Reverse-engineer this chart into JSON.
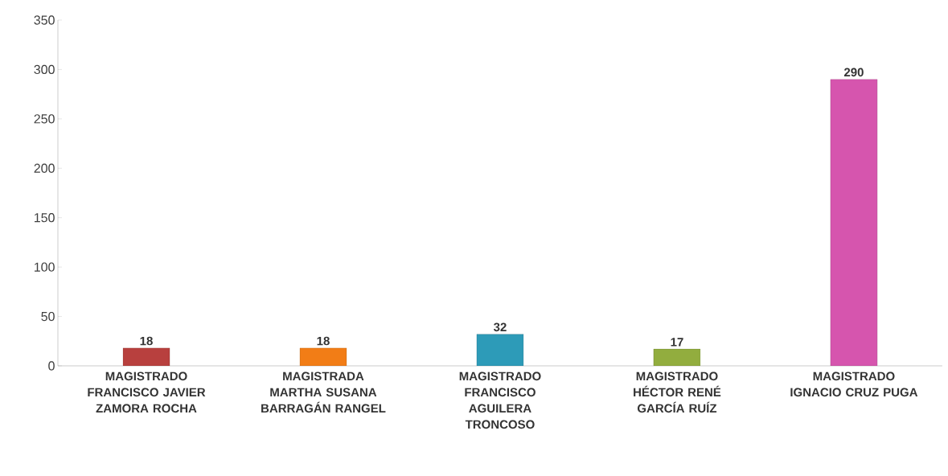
{
  "chart_data": {
    "type": "bar",
    "categories": [
      "MAGISTRADO FRANCISCO JAVIER ZAMORA ROCHA",
      "MAGISTRADA MARTHA SUSANA BARRAGÁN RANGEL",
      "MAGISTRADO FRANCISCO AGUILERA TRONCOSO",
      "MAGISTRADO HÉCTOR RENÉ GARCÍA RUÍZ",
      "MAGISTRADO IGNACIO CRUZ PUGA"
    ],
    "values": [
      18,
      18,
      32,
      17,
      290
    ],
    "colors": [
      "#b8403e",
      "#f27d16",
      "#2d9bb8",
      "#92ad3e",
      "#d655ae"
    ],
    "ylim": [
      0,
      350
    ],
    "yticks": [
      0,
      50,
      100,
      150,
      200,
      250,
      300,
      350
    ],
    "data_labels": true,
    "grid": false
  }
}
